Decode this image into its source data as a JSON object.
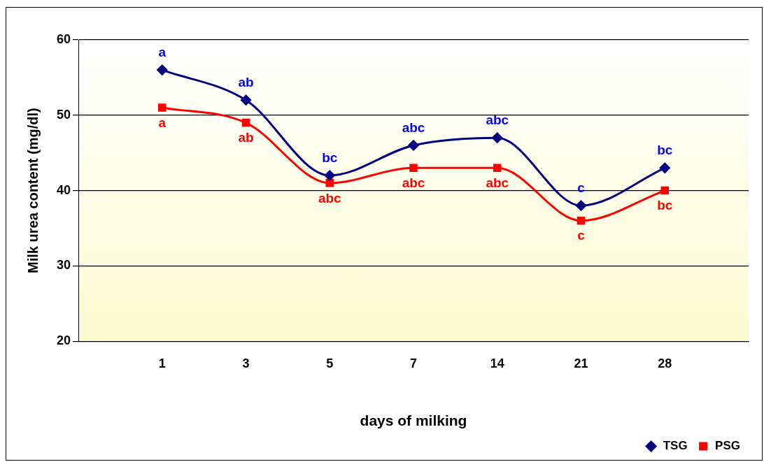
{
  "chart_data": {
    "type": "line",
    "xlabel": "days of milking",
    "ylabel": "Milk urea content (mg/dl)",
    "categories": [
      null,
      "1",
      "3",
      "5",
      "7",
      "14",
      "21",
      "28",
      null
    ],
    "series": [
      {
        "name": "TSG",
        "color": "#000080",
        "marker": "diamond",
        "values": [
          null,
          56,
          52,
          42,
          46,
          47,
          38,
          43,
          null
        ]
      },
      {
        "name": "PSG",
        "color": "#ff0000",
        "marker": "square",
        "values": [
          null,
          51,
          49,
          41,
          43,
          43,
          36,
          40,
          null
        ]
      }
    ],
    "ylim": [
      20,
      60
    ],
    "yticks": [
      20,
      30,
      40,
      50,
      60
    ],
    "grid": "y",
    "legend": "bottom right",
    "annotations": [
      {
        "text": "a",
        "x": "1",
        "y": 56
      },
      {
        "text": "ab",
        "x": "3",
        "y": 52
      },
      {
        "text": "bc",
        "x": "5",
        "y": 42
      },
      {
        "text": "abc",
        "x": "7",
        "y": 46
      },
      {
        "text": "abc",
        "x": "14",
        "y": 47
      },
      {
        "text": "c",
        "x": "21",
        "y": 38
      },
      {
        "text": "bc",
        "x": "28",
        "y": 43
      },
      {
        "text": "a",
        "x": "1",
        "y": 51
      },
      {
        "text": "ab",
        "x": "3",
        "y": 49
      },
      {
        "text": "abc",
        "x": "5",
        "y": 41
      },
      {
        "text": "abc",
        "x": "7",
        "y": 43
      },
      {
        "text": "abc",
        "x": "14",
        "y": 43
      },
      {
        "text": "c",
        "x": "21",
        "y": 36
      },
      {
        "text": "bc",
        "x": "28",
        "y": 40
      }
    ]
  }
}
